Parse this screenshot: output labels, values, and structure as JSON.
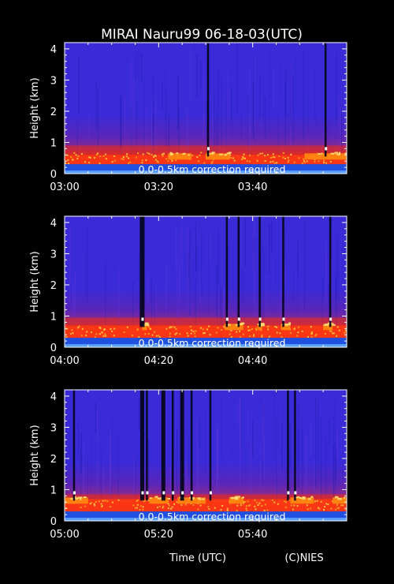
{
  "figure": {
    "title": "MIRAI Nauru99 06-18-03(UTC)",
    "credit": "(C)NIES",
    "xlabel": "Time (UTC)"
  },
  "colors": {
    "background": "#000000",
    "axes": "#ffffff",
    "base_blue": "#2a2ad0",
    "surface_blue": "#2f6cf0",
    "low_band": "#ee2a10",
    "cloud_bright": "#ffd870",
    "dark_column": "#05051a"
  },
  "chart_data": [
    {
      "type": "heatmap",
      "title": "",
      "xlabel": "",
      "ylabel": "Height (km)",
      "x_ticks": [
        "03:00",
        "03:20",
        "03:40"
      ],
      "xlim_minutes": [
        0,
        60
      ],
      "y_ticks": [
        0,
        1,
        2,
        3,
        4
      ],
      "ylim_km": [
        0,
        4.2
      ],
      "annotation": "0.0-0.5km correction required",
      "features": {
        "boundary_layer_top_km": 0.9,
        "cloud_base_km": 0.5,
        "signal_dropouts_minutes": [
          30.5,
          55.5
        ],
        "bright_cloud_minutes": [
          [
            22,
            27
          ],
          [
            30,
            35
          ],
          [
            51,
            60
          ]
        ]
      }
    },
    {
      "type": "heatmap",
      "title": "",
      "xlabel": "",
      "ylabel": "Height (km)",
      "x_ticks": [
        "04:00",
        "04:20",
        "04:40"
      ],
      "xlim_minutes": [
        0,
        60
      ],
      "y_ticks": [
        0,
        1,
        2,
        3,
        4
      ],
      "ylim_km": [
        0,
        4.2
      ],
      "annotation": "0.0-0.5km correction required",
      "features": {
        "boundary_layer_top_km": 0.95,
        "cloud_base_km": 0.6,
        "signal_dropouts_minutes": [
          16.5,
          34.5,
          37,
          41.5,
          46.5,
          56.5
        ],
        "bright_cloud_minutes": [
          [
            16.5,
            17.5
          ],
          [
            34,
            38
          ],
          [
            41,
            42
          ],
          [
            46,
            48
          ],
          [
            55,
            57
          ]
        ]
      }
    },
    {
      "type": "heatmap",
      "title": "",
      "xlabel": "Time (UTC)",
      "ylabel": "Height (km)",
      "x_ticks": [
        "05:00",
        "05:20",
        "05:40"
      ],
      "xlim_minutes": [
        0,
        60
      ],
      "y_ticks": [
        0,
        1,
        2,
        3,
        4
      ],
      "ylim_km": [
        0,
        4.2
      ],
      "annotation": "0.0-0.5km correction required",
      "features": {
        "boundary_layer_top_km": 0.85,
        "cloud_base_km": 0.6,
        "signal_dropouts_minutes": [
          2,
          16.5,
          17.5,
          21,
          23,
          25,
          27,
          31,
          47.5,
          49
        ],
        "bright_cloud_minutes": [
          [
            0,
            5
          ],
          [
            18,
            22
          ],
          [
            24,
            30
          ],
          [
            35,
            38
          ],
          [
            48,
            53
          ],
          [
            57,
            60
          ]
        ]
      }
    }
  ]
}
